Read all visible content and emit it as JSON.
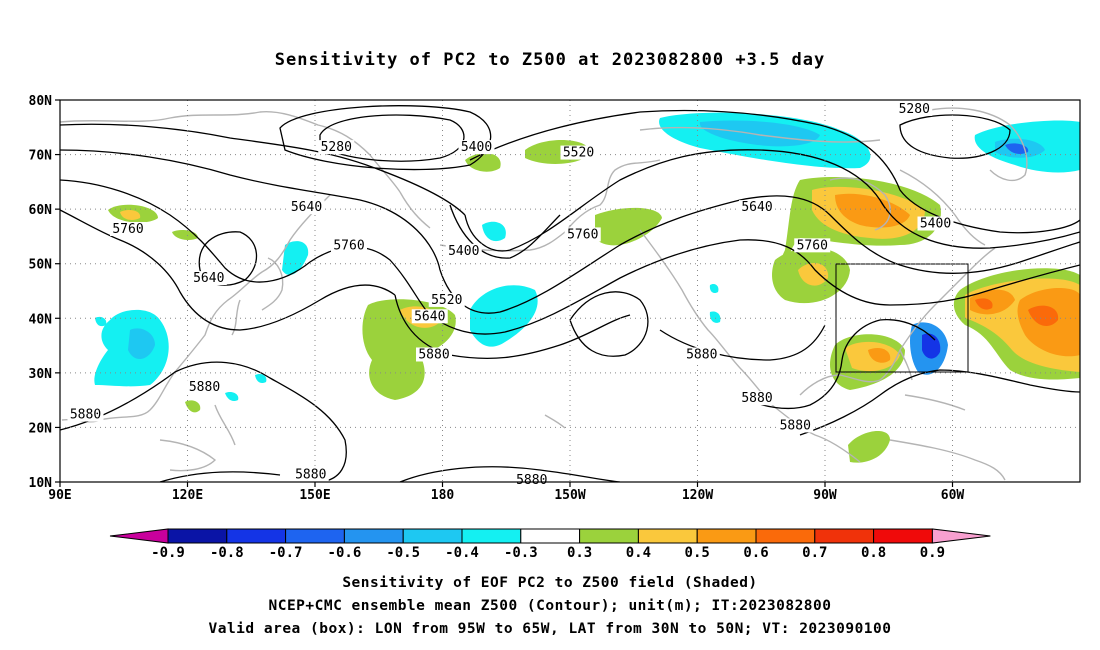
{
  "title": "Sensitivity of PC2 to Z500 at 2023082800 +3.5 day",
  "lat_labels": [
    "80N",
    "70N",
    "60N",
    "50N",
    "40N",
    "30N",
    "20N",
    "10N"
  ],
  "lon_labels": [
    "90E",
    "120E",
    "150E",
    "180",
    "150W",
    "120W",
    "90W",
    "60W"
  ],
  "contour_labels": [
    {
      "text": "5400",
      "lon": -172,
      "lat": 71
    },
    {
      "text": "5280",
      "lon": 155,
      "lat": 71
    },
    {
      "text": "5280",
      "lon": -69,
      "lat": 78
    },
    {
      "text": "5520",
      "lon": -148,
      "lat": 70
    },
    {
      "text": "5400",
      "lon": -175,
      "lat": 52
    },
    {
      "text": "5640",
      "lon": 148,
      "lat": 60
    },
    {
      "text": "5640",
      "lon": -106,
      "lat": 60
    },
    {
      "text": "5760",
      "lon": 106,
      "lat": 56
    },
    {
      "text": "5400",
      "lon": -64,
      "lat": 57
    },
    {
      "text": "5760",
      "lon": -147,
      "lat": 55
    },
    {
      "text": "5760",
      "lon": 158,
      "lat": 53
    },
    {
      "text": "5760",
      "lon": -93,
      "lat": 53
    },
    {
      "text": "5640",
      "lon": 125,
      "lat": 47
    },
    {
      "text": "5520",
      "lon": -179,
      "lat": 43
    },
    {
      "text": "5640",
      "lon": 177,
      "lat": 40
    },
    {
      "text": "5880",
      "lon": 178,
      "lat": 33
    },
    {
      "text": "5880",
      "lon": -119,
      "lat": 33
    },
    {
      "text": "5880",
      "lon": 124,
      "lat": 27
    },
    {
      "text": "5880",
      "lon": -106,
      "lat": 25
    },
    {
      "text": "5880",
      "lon": 96,
      "lat": 22
    },
    {
      "text": "5880",
      "lon": -97,
      "lat": 20
    },
    {
      "text": "5880",
      "lon": 149,
      "lat": 11
    },
    {
      "text": "5880",
      "lon": -159,
      "lat": 10
    }
  ],
  "valid_box": {
    "lon_west": -95,
    "lon_east": -65,
    "lat_south": 30,
    "lat_north": 50
  },
  "colorbar": {
    "labels": [
      "-0.9",
      "-0.8",
      "-0.7",
      "-0.6",
      "-0.5",
      "-0.4",
      "-0.3",
      "0.3",
      "0.4",
      "0.5",
      "0.6",
      "0.7",
      "0.8",
      "0.9"
    ],
    "colors": [
      "#c8009c",
      "#0a14a6",
      "#1434e6",
      "#1e64f0",
      "#2494f0",
      "#1ec8f2",
      "#14f0f2",
      "#ffffff",
      "#9bd23c",
      "#fac83c",
      "#fa9a14",
      "#fa6a0a",
      "#f0320a",
      "#f00a0a",
      "#f8a0d0"
    ]
  },
  "captions": [
    "Sensitivity of EOF PC2 to Z500 field (Shaded)",
    "NCEP+CMC ensemble mean Z500 (Contour); unit(m); IT:2023082800",
    "Valid area (box): LON from 95W to 65W, LAT from 30N to 50N; VT: 2023090100"
  ]
}
